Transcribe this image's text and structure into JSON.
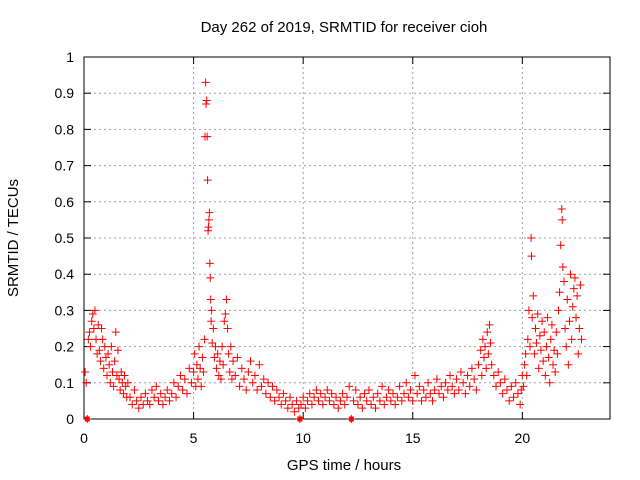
{
  "chart_data": {
    "type": "scatter",
    "title": "Day 262 of 2019, SRMTID for receiver cioh",
    "xlabel": "GPS time / hours",
    "ylabel": "SRMTID / TECUs",
    "xlim": [
      0,
      24
    ],
    "ylim": [
      0,
      1
    ],
    "xticks": [
      0,
      5,
      10,
      15,
      20
    ],
    "xtick_labels": [
      "0",
      "5",
      "10",
      "15",
      "20"
    ],
    "yticks": [
      0,
      0.1,
      0.2,
      0.3,
      0.4,
      0.5,
      0.6,
      0.7,
      0.8,
      0.9,
      1
    ],
    "ytick_labels": [
      "0",
      "0.1",
      "0.2",
      "0.3",
      "0.4",
      "0.5",
      "0.6",
      "0.7",
      "0.8",
      "0.9",
      "1"
    ],
    "grid": true,
    "marker": "+",
    "color": "#ff0000",
    "series": [
      {
        "name": "SRMTID",
        "points": [
          [
            0.05,
            0.13
          ],
          [
            0.1,
            0.1
          ],
          [
            0.15,
            0.0
          ],
          [
            0.2,
            0.22
          ],
          [
            0.25,
            0.24
          ],
          [
            0.3,
            0.2
          ],
          [
            0.35,
            0.27
          ],
          [
            0.4,
            0.29
          ],
          [
            0.45,
            0.25
          ],
          [
            0.5,
            0.3
          ],
          [
            0.55,
            0.22
          ],
          [
            0.6,
            0.18
          ],
          [
            0.65,
            0.26
          ],
          [
            0.7,
            0.19
          ],
          [
            0.75,
            0.16
          ],
          [
            0.8,
            0.25
          ],
          [
            0.85,
            0.22
          ],
          [
            0.9,
            0.14
          ],
          [
            0.95,
            0.2
          ],
          [
            1.0,
            0.17
          ],
          [
            1.05,
            0.12
          ],
          [
            1.1,
            0.18
          ],
          [
            1.15,
            0.15
          ],
          [
            1.2,
            0.1
          ],
          [
            1.25,
            0.2
          ],
          [
            1.3,
            0.13
          ],
          [
            1.35,
            0.09
          ],
          [
            1.4,
            0.16
          ],
          [
            1.45,
            0.24
          ],
          [
            1.5,
            0.12
          ],
          [
            1.55,
            0.19
          ],
          [
            1.6,
            0.11
          ],
          [
            1.65,
            0.08
          ],
          [
            1.7,
            0.13
          ],
          [
            1.75,
            0.1
          ],
          [
            1.8,
            0.07
          ],
          [
            1.85,
            0.12
          ],
          [
            1.9,
            0.09
          ],
          [
            1.95,
            0.06
          ],
          [
            2.0,
            0.1
          ],
          [
            2.1,
            0.06
          ],
          [
            2.2,
            0.04
          ],
          [
            2.3,
            0.08
          ],
          [
            2.4,
            0.05
          ],
          [
            2.5,
            0.03
          ],
          [
            2.6,
            0.06
          ],
          [
            2.7,
            0.04
          ],
          [
            2.8,
            0.07
          ],
          [
            2.9,
            0.05
          ],
          [
            3.0,
            0.04
          ],
          [
            3.1,
            0.08
          ],
          [
            3.2,
            0.06
          ],
          [
            3.3,
            0.09
          ],
          [
            3.4,
            0.05
          ],
          [
            3.5,
            0.07
          ],
          [
            3.6,
            0.04
          ],
          [
            3.7,
            0.06
          ],
          [
            3.8,
            0.08
          ],
          [
            3.9,
            0.05
          ],
          [
            4.0,
            0.07
          ],
          [
            4.1,
            0.1
          ],
          [
            4.2,
            0.06
          ],
          [
            4.3,
            0.09
          ],
          [
            4.4,
            0.12
          ],
          [
            4.5,
            0.08
          ],
          [
            4.6,
            0.11
          ],
          [
            4.7,
            0.07
          ],
          [
            4.8,
            0.14
          ],
          [
            4.9,
            0.1
          ],
          [
            5.0,
            0.13
          ],
          [
            5.05,
            0.18
          ],
          [
            5.1,
            0.09
          ],
          [
            5.15,
            0.15
          ],
          [
            5.2,
            0.11
          ],
          [
            5.25,
            0.2
          ],
          [
            5.3,
            0.14
          ],
          [
            5.35,
            0.09
          ],
          [
            5.4,
            0.17
          ],
          [
            5.45,
            0.13
          ],
          [
            5.5,
            0.22
          ],
          [
            5.52,
            0.78
          ],
          [
            5.55,
            0.93
          ],
          [
            5.57,
            0.87
          ],
          [
            5.6,
            0.88
          ],
          [
            5.62,
            0.78
          ],
          [
            5.64,
            0.66
          ],
          [
            5.66,
            0.52
          ],
          [
            5.68,
            0.53
          ],
          [
            5.7,
            0.55
          ],
          [
            5.72,
            0.57
          ],
          [
            5.74,
            0.43
          ],
          [
            5.76,
            0.39
          ],
          [
            5.78,
            0.33
          ],
          [
            5.8,
            0.27
          ],
          [
            5.82,
            0.3
          ],
          [
            5.85,
            0.21
          ],
          [
            5.9,
            0.25
          ],
          [
            5.95,
            0.17
          ],
          [
            6.0,
            0.2
          ],
          [
            6.05,
            0.14
          ],
          [
            6.1,
            0.18
          ],
          [
            6.15,
            0.12
          ],
          [
            6.2,
            0.16
          ],
          [
            6.25,
            0.11
          ],
          [
            6.3,
            0.2
          ],
          [
            6.35,
            0.15
          ],
          [
            6.4,
            0.27
          ],
          [
            6.45,
            0.29
          ],
          [
            6.5,
            0.33
          ],
          [
            6.55,
            0.25
          ],
          [
            6.6,
            0.18
          ],
          [
            6.65,
            0.13
          ],
          [
            6.7,
            0.2
          ],
          [
            6.75,
            0.11
          ],
          [
            6.8,
            0.16
          ],
          [
            6.9,
            0.12
          ],
          [
            7.0,
            0.17
          ],
          [
            7.1,
            0.09
          ],
          [
            7.2,
            0.14
          ],
          [
            7.3,
            0.11
          ],
          [
            7.4,
            0.08
          ],
          [
            7.5,
            0.13
          ],
          [
            7.6,
            0.16
          ],
          [
            7.7,
            0.1
          ],
          [
            7.8,
            0.12
          ],
          [
            7.9,
            0.08
          ],
          [
            8.0,
            0.15
          ],
          [
            8.1,
            0.09
          ],
          [
            8.2,
            0.11
          ],
          [
            8.3,
            0.07
          ],
          [
            8.4,
            0.1
          ],
          [
            8.5,
            0.06
          ],
          [
            8.6,
            0.09
          ],
          [
            8.7,
            0.05
          ],
          [
            8.8,
            0.08
          ],
          [
            8.9,
            0.06
          ],
          [
            9.0,
            0.04
          ],
          [
            9.1,
            0.07
          ],
          [
            9.2,
            0.05
          ],
          [
            9.3,
            0.03
          ],
          [
            9.4,
            0.06
          ],
          [
            9.5,
            0.04
          ],
          [
            9.6,
            0.02
          ],
          [
            9.7,
            0.05
          ],
          [
            9.8,
            0.03
          ],
          [
            9.85,
            0.0
          ],
          [
            9.9,
            0.04
          ],
          [
            10.0,
            0.06
          ],
          [
            10.1,
            0.03
          ],
          [
            10.2,
            0.05
          ],
          [
            10.3,
            0.07
          ],
          [
            10.4,
            0.04
          ],
          [
            10.5,
            0.06
          ],
          [
            10.6,
            0.08
          ],
          [
            10.7,
            0.05
          ],
          [
            10.8,
            0.07
          ],
          [
            10.9,
            0.04
          ],
          [
            11.0,
            0.06
          ],
          [
            11.1,
            0.08
          ],
          [
            11.2,
            0.05
          ],
          [
            11.3,
            0.07
          ],
          [
            11.4,
            0.04
          ],
          [
            11.5,
            0.06
          ],
          [
            11.6,
            0.03
          ],
          [
            11.7,
            0.05
          ],
          [
            11.8,
            0.07
          ],
          [
            11.9,
            0.04
          ],
          [
            12.0,
            0.06
          ],
          [
            12.1,
            0.09
          ],
          [
            12.2,
            0.0
          ],
          [
            12.3,
            0.05
          ],
          [
            12.4,
            0.08
          ],
          [
            12.5,
            0.04
          ],
          [
            12.6,
            0.06
          ],
          [
            12.7,
            0.03
          ],
          [
            12.8,
            0.07
          ],
          [
            12.9,
            0.05
          ],
          [
            13.0,
            0.08
          ],
          [
            13.1,
            0.04
          ],
          [
            13.2,
            0.06
          ],
          [
            13.3,
            0.03
          ],
          [
            13.4,
            0.07
          ],
          [
            13.5,
            0.05
          ],
          [
            13.6,
            0.09
          ],
          [
            13.7,
            0.04
          ],
          [
            13.8,
            0.06
          ],
          [
            13.9,
            0.08
          ],
          [
            14.0,
            0.05
          ],
          [
            14.1,
            0.07
          ],
          [
            14.2,
            0.04
          ],
          [
            14.3,
            0.06
          ],
          [
            14.4,
            0.09
          ],
          [
            14.5,
            0.05
          ],
          [
            14.6,
            0.07
          ],
          [
            14.7,
            0.1
          ],
          [
            14.8,
            0.06
          ],
          [
            14.9,
            0.08
          ],
          [
            15.0,
            0.05
          ],
          [
            15.1,
            0.12
          ],
          [
            15.2,
            0.07
          ],
          [
            15.3,
            0.09
          ],
          [
            15.4,
            0.05
          ],
          [
            15.5,
            0.08
          ],
          [
            15.6,
            0.06
          ],
          [
            15.7,
            0.1
          ],
          [
            15.8,
            0.07
          ],
          [
            15.9,
            0.05
          ],
          [
            16.0,
            0.08
          ],
          [
            16.1,
            0.11
          ],
          [
            16.2,
            0.07
          ],
          [
            16.3,
            0.09
          ],
          [
            16.4,
            0.06
          ],
          [
            16.5,
            0.1
          ],
          [
            16.6,
            0.08
          ],
          [
            16.7,
            0.12
          ],
          [
            16.8,
            0.09
          ],
          [
            16.9,
            0.07
          ],
          [
            17.0,
            0.11
          ],
          [
            17.1,
            0.08
          ],
          [
            17.2,
            0.13
          ],
          [
            17.3,
            0.1
          ],
          [
            17.4,
            0.07
          ],
          [
            17.5,
            0.12
          ],
          [
            17.6,
            0.09
          ],
          [
            17.7,
            0.14
          ],
          [
            17.8,
            0.11
          ],
          [
            17.9,
            0.08
          ],
          [
            18.0,
            0.15
          ],
          [
            18.1,
            0.19
          ],
          [
            18.15,
            0.12
          ],
          [
            18.2,
            0.22
          ],
          [
            18.25,
            0.17
          ],
          [
            18.3,
            0.2
          ],
          [
            18.35,
            0.14
          ],
          [
            18.4,
            0.24
          ],
          [
            18.45,
            0.18
          ],
          [
            18.5,
            0.26
          ],
          [
            18.55,
            0.21
          ],
          [
            18.6,
            0.15
          ],
          [
            18.7,
            0.12
          ],
          [
            18.8,
            0.09
          ],
          [
            18.9,
            0.13
          ],
          [
            19.0,
            0.1
          ],
          [
            19.1,
            0.07
          ],
          [
            19.2,
            0.11
          ],
          [
            19.3,
            0.08
          ],
          [
            19.4,
            0.05
          ],
          [
            19.5,
            0.09
          ],
          [
            19.6,
            0.06
          ],
          [
            19.7,
            0.1
          ],
          [
            19.8,
            0.07
          ],
          [
            19.9,
            0.04
          ],
          [
            19.95,
            0.08
          ],
          [
            20.0,
            0.12
          ],
          [
            20.05,
            0.09
          ],
          [
            20.1,
            0.15
          ],
          [
            20.15,
            0.18
          ],
          [
            20.2,
            0.12
          ],
          [
            20.25,
            0.22
          ],
          [
            20.3,
            0.3
          ],
          [
            20.35,
            0.2
          ],
          [
            20.4,
            0.5
          ],
          [
            20.42,
            0.45
          ],
          [
            20.45,
            0.28
          ],
          [
            20.5,
            0.34
          ],
          [
            20.55,
            0.18
          ],
          [
            20.6,
            0.25
          ],
          [
            20.65,
            0.21
          ],
          [
            20.7,
            0.29
          ],
          [
            20.75,
            0.14
          ],
          [
            20.8,
            0.23
          ],
          [
            20.85,
            0.19
          ],
          [
            20.9,
            0.27
          ],
          [
            20.95,
            0.16
          ],
          [
            21.0,
            0.24
          ],
          [
            21.05,
            0.12
          ],
          [
            21.1,
            0.2
          ],
          [
            21.15,
            0.28
          ],
          [
            21.2,
            0.17
          ],
          [
            21.25,
            0.1
          ],
          [
            21.3,
            0.22
          ],
          [
            21.35,
            0.26
          ],
          [
            21.4,
            0.15
          ],
          [
            21.45,
            0.19
          ],
          [
            21.5,
            0.13
          ],
          [
            21.55,
            0.24
          ],
          [
            21.6,
            0.18
          ],
          [
            21.65,
            0.3
          ],
          [
            21.7,
            0.35
          ],
          [
            21.75,
            0.48
          ],
          [
            21.8,
            0.58
          ],
          [
            21.82,
            0.55
          ],
          [
            21.85,
            0.42
          ],
          [
            21.9,
            0.38
          ],
          [
            21.95,
            0.25
          ],
          [
            22.0,
            0.2
          ],
          [
            22.05,
            0.33
          ],
          [
            22.1,
            0.15
          ],
          [
            22.15,
            0.27
          ],
          [
            22.2,
            0.4
          ],
          [
            22.25,
            0.22
          ],
          [
            22.3,
            0.31
          ],
          [
            22.35,
            0.36
          ],
          [
            22.4,
            0.39
          ],
          [
            22.45,
            0.28
          ],
          [
            22.5,
            0.34
          ],
          [
            22.55,
            0.18
          ],
          [
            22.6,
            0.25
          ],
          [
            22.65,
            0.37
          ],
          [
            22.7,
            0.22
          ]
        ]
      }
    ],
    "zero_markers": [
      0.15,
      9.85,
      12.2
    ]
  }
}
